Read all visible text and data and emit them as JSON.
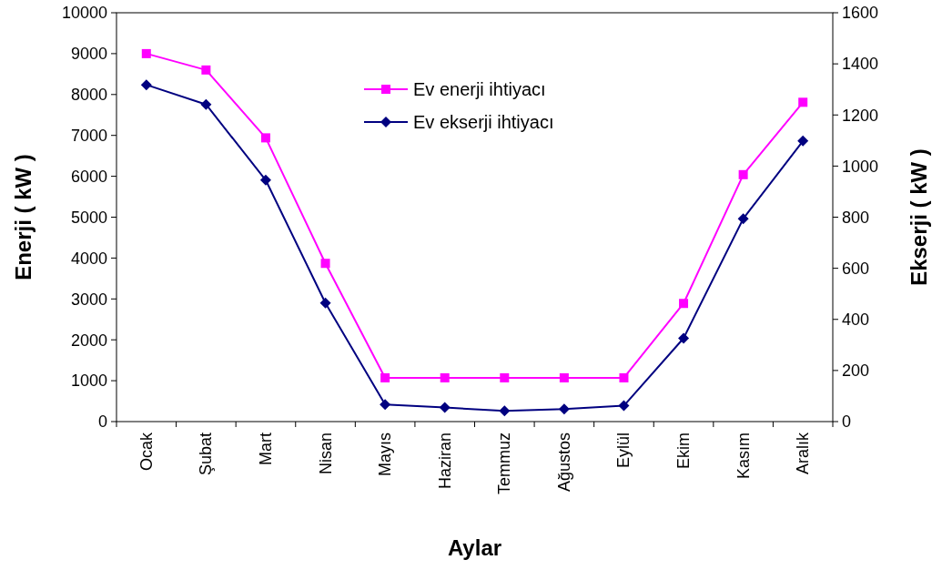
{
  "chart_data": {
    "type": "line",
    "xlabel": "Aylar",
    "ylabel": "Enerji ( kW )",
    "y2label": "Ekserji ( kW )",
    "categories": [
      "Ocak",
      "Şubat",
      "Mart",
      "Nisan",
      "Mayıs",
      "Haziran",
      "Temmuz",
      "Ağustos",
      "Eylül",
      "Ekim",
      "Kasım",
      "Aralık"
    ],
    "series": [
      {
        "name": "Ev enerji ihtiyacı",
        "color": "#ff00ff",
        "marker": "square",
        "values": [
          9000,
          8600,
          6940,
          3870,
          1070,
          1070,
          1070,
          1070,
          1070,
          2890,
          6040,
          7810
        ]
      },
      {
        "name": "Ev ekserji ihtiyacı",
        "color": "#000080",
        "marker": "diamond",
        "axis": "y2",
        "values": [
          1318,
          1241,
          945,
          464,
          67,
          55,
          42,
          49,
          62,
          326,
          794,
          1098
        ]
      }
    ],
    "ylim": [
      0,
      10000
    ],
    "yticks": [
      0,
      1000,
      2000,
      3000,
      4000,
      5000,
      6000,
      7000,
      8000,
      9000,
      10000
    ],
    "y2lim": [
      0,
      1600
    ],
    "y2ticks": [
      0,
      200,
      400,
      600,
      800,
      1000,
      1200,
      1400,
      1600
    ],
    "grid": false,
    "legend": "top"
  }
}
